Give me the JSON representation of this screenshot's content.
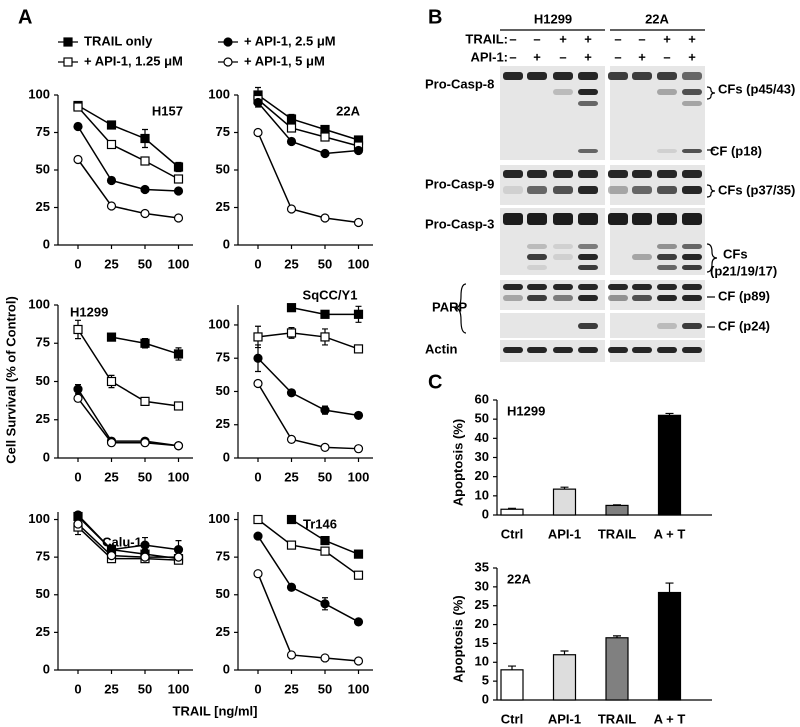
{
  "panels": {
    "a": "A",
    "b": "B",
    "c": "C"
  },
  "panel_a": {
    "y_label": "Cell Survival (% of Control)",
    "x_label": "TRAIL [ng/ml]"
  },
  "legend": {
    "entries": [
      {
        "name": "TRAIL only",
        "marker": "filled-square"
      },
      {
        "name": "+ API-1, 1.25 μM",
        "marker": "open-square"
      },
      {
        "name": "+ API-1, 2.5 μM",
        "marker": "filled-circle"
      },
      {
        "name": "+ API-1, 5 μM",
        "marker": "open-circle"
      }
    ]
  },
  "blot": {
    "cell_lines": [
      "H1299",
      "22A"
    ],
    "treatments": [
      {
        "label": "TRAIL:",
        "signs": [
          "–",
          "–",
          "+",
          "+",
          "–",
          "–",
          "+",
          "+"
        ]
      },
      {
        "label": "API-1:",
        "signs": [
          "–",
          "+",
          "–",
          "+",
          "–",
          "+",
          "–",
          "+"
        ]
      }
    ],
    "row_labels": [
      "Pro-Casp-8",
      "Pro-Casp-9",
      "Pro-Casp-3",
      "PARP",
      "Actin"
    ],
    "fragment_labels": [
      "CFs (p45/43)",
      "CF (p18)",
      "CFs (p37/35)",
      "CFs",
      "(p21/19/17)",
      "CF (p89)",
      "CF (p24)"
    ]
  },
  "chart_data": [
    {
      "type": "line",
      "title": "H157",
      "categories": [
        "0",
        "25",
        "50",
        "100"
      ],
      "ylim": [
        0,
        100
      ],
      "yticks": [
        0,
        25,
        50,
        75,
        100
      ],
      "series": [
        {
          "marker": "filled-square",
          "values": [
            93,
            80,
            71,
            52
          ],
          "errors": [
            2,
            2,
            6,
            3
          ]
        },
        {
          "marker": "open-square",
          "values": [
            92,
            67,
            56,
            44
          ],
          "errors": [
            2,
            1,
            2,
            2
          ]
        },
        {
          "marker": "filled-circle",
          "values": [
            79,
            43,
            37,
            36
          ],
          "errors": [
            2,
            2,
            1,
            1
          ]
        },
        {
          "marker": "open-circle",
          "values": [
            57,
            26,
            21,
            18
          ],
          "errors": [
            2,
            1,
            1,
            1
          ]
        }
      ]
    },
    {
      "type": "line",
      "title": "22A",
      "categories": [
        "0",
        "25",
        "50",
        "100"
      ],
      "ylim": [
        0,
        100
      ],
      "yticks": [
        0,
        25,
        50,
        75,
        100
      ],
      "series": [
        {
          "marker": "filled-square",
          "values": [
            100,
            84,
            77,
            70
          ],
          "errors": [
            5,
            3,
            2,
            2
          ]
        },
        {
          "marker": "open-square",
          "values": [
            97,
            78,
            72,
            66
          ],
          "errors": [
            3,
            2,
            2,
            2
          ]
        },
        {
          "marker": "filled-circle",
          "values": [
            95,
            69,
            61,
            63
          ],
          "errors": [
            3,
            2,
            2,
            2
          ]
        },
        {
          "marker": "open-circle",
          "values": [
            75,
            24,
            18,
            15
          ],
          "errors": [
            1,
            1,
            1,
            1
          ]
        }
      ]
    },
    {
      "type": "line",
      "title": "H1299",
      "categories": [
        "0",
        "25",
        "50",
        "100"
      ],
      "ylim": [
        0,
        100
      ],
      "yticks": [
        0,
        25,
        50,
        75,
        100
      ],
      "series": [
        {
          "marker": "filled-square",
          "values": [
            null,
            79,
            75,
            68
          ],
          "errors": [
            null,
            2,
            3,
            4
          ]
        },
        {
          "marker": "open-square",
          "values": [
            84,
            50,
            37,
            34
          ],
          "errors": [
            6,
            4,
            1,
            1
          ]
        },
        {
          "marker": "filled-circle",
          "values": [
            45,
            11,
            11,
            8
          ],
          "errors": [
            3,
            1,
            1,
            1
          ]
        },
        {
          "marker": "open-circle",
          "values": [
            39,
            10,
            10,
            8
          ],
          "errors": [
            2,
            1,
            1,
            1
          ]
        }
      ]
    },
    {
      "type": "line",
      "title": "SqCC/Y1",
      "categories": [
        "0",
        "25",
        "50",
        "100"
      ],
      "ylim": [
        0,
        115
      ],
      "yticks": [
        0,
        25,
        50,
        75,
        100
      ],
      "series": [
        {
          "marker": "filled-square",
          "values": [
            null,
            113,
            108,
            108
          ],
          "errors": [
            null,
            1,
            2,
            6
          ]
        },
        {
          "marker": "open-square",
          "values": [
            91,
            94,
            91,
            82
          ],
          "errors": [
            8,
            4,
            6,
            2
          ]
        },
        {
          "marker": "filled-circle",
          "values": [
            75,
            49,
            36,
            32
          ],
          "errors": [
            10,
            2,
            3,
            1
          ]
        },
        {
          "marker": "open-circle",
          "values": [
            56,
            14,
            8,
            7
          ],
          "errors": [
            1,
            1,
            1,
            1
          ]
        }
      ]
    },
    {
      "type": "line",
      "title": "Calu-1",
      "categories": [
        "0",
        "25",
        "50",
        "100"
      ],
      "ylim": [
        0,
        105
      ],
      "yticks": [
        0,
        25,
        50,
        75,
        100
      ],
      "series": [
        {
          "marker": "filled-square",
          "values": [
            102,
            80,
            77,
            74
          ],
          "errors": [
            2,
            3,
            3,
            2
          ]
        },
        {
          "marker": "open-square",
          "values": [
            95,
            74,
            74,
            73
          ],
          "errors": [
            5,
            2,
            2,
            2
          ]
        },
        {
          "marker": "filled-circle",
          "values": [
            103,
            80,
            83,
            80
          ],
          "errors": [
            2,
            2,
            5,
            6
          ]
        },
        {
          "marker": "open-circle",
          "values": [
            97,
            76,
            75,
            75
          ],
          "errors": [
            2,
            2,
            2,
            2
          ]
        }
      ]
    },
    {
      "type": "line",
      "title": "Tr146",
      "categories": [
        "0",
        "25",
        "50",
        "100"
      ],
      "ylim": [
        0,
        105
      ],
      "yticks": [
        0,
        25,
        50,
        75,
        100
      ],
      "series": [
        {
          "marker": "filled-square",
          "values": [
            null,
            100,
            86,
            77
          ],
          "errors": [
            null,
            1,
            2,
            2
          ]
        },
        {
          "marker": "open-square",
          "values": [
            100,
            83,
            79,
            63
          ],
          "errors": [
            1,
            1,
            1,
            2
          ]
        },
        {
          "marker": "filled-circle",
          "values": [
            89,
            55,
            44,
            32
          ],
          "errors": [
            1,
            2,
            4,
            1
          ]
        },
        {
          "marker": "open-circle",
          "values": [
            64,
            10,
            8,
            6
          ],
          "errors": [
            1,
            1,
            1,
            1
          ]
        }
      ]
    },
    {
      "type": "bar",
      "title": "H1299",
      "y_label": "Apoptosis (%)",
      "categories": [
        "Ctrl",
        "API-1",
        "TRAIL",
        "A + T"
      ],
      "values": [
        3,
        13.5,
        5,
        52
      ],
      "errors": [
        0.5,
        1,
        0.3,
        1
      ],
      "colors": [
        "#ffffff",
        "#dddddd",
        "#808080",
        "#000000"
      ],
      "ylim": [
        0,
        60
      ],
      "yticks": [
        0,
        10,
        20,
        30,
        40,
        50,
        60
      ]
    },
    {
      "type": "bar",
      "title": "22A",
      "y_label": "Apoptosis (%)",
      "categories": [
        "Ctrl",
        "API-1",
        "TRAIL",
        "A + T"
      ],
      "values": [
        8,
        12,
        16.5,
        28.5
      ],
      "errors": [
        1,
        1,
        0.5,
        2.5
      ],
      "colors": [
        "#ffffff",
        "#dddddd",
        "#808080",
        "#000000"
      ],
      "ylim": [
        0,
        35
      ],
      "yticks": [
        0,
        5,
        10,
        15,
        20,
        25,
        30,
        35
      ]
    }
  ]
}
